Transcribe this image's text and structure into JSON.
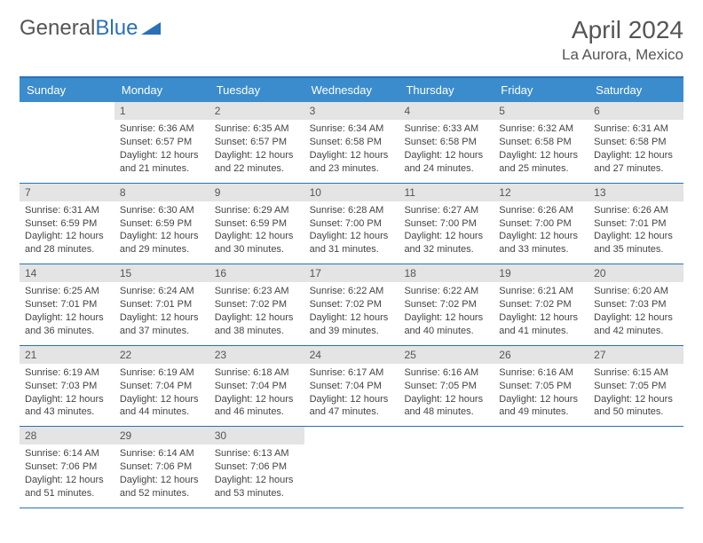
{
  "logo": {
    "part1": "General",
    "part2": "Blue"
  },
  "title": "April 2024",
  "location": "La Aurora, Mexico",
  "colors": {
    "header_bg": "#3b8ccc",
    "border": "#2a71b8",
    "daynum_bg": "#e4e4e4",
    "text": "#444444",
    "muted": "#555555"
  },
  "dayNames": [
    "Sunday",
    "Monday",
    "Tuesday",
    "Wednesday",
    "Thursday",
    "Friday",
    "Saturday"
  ],
  "weeks": [
    [
      {
        "day": "",
        "sunrise": "",
        "sunset": "",
        "daylight1": "",
        "daylight2": ""
      },
      {
        "day": "1",
        "sunrise": "Sunrise: 6:36 AM",
        "sunset": "Sunset: 6:57 PM",
        "daylight1": "Daylight: 12 hours",
        "daylight2": "and 21 minutes."
      },
      {
        "day": "2",
        "sunrise": "Sunrise: 6:35 AM",
        "sunset": "Sunset: 6:57 PM",
        "daylight1": "Daylight: 12 hours",
        "daylight2": "and 22 minutes."
      },
      {
        "day": "3",
        "sunrise": "Sunrise: 6:34 AM",
        "sunset": "Sunset: 6:58 PM",
        "daylight1": "Daylight: 12 hours",
        "daylight2": "and 23 minutes."
      },
      {
        "day": "4",
        "sunrise": "Sunrise: 6:33 AM",
        "sunset": "Sunset: 6:58 PM",
        "daylight1": "Daylight: 12 hours",
        "daylight2": "and 24 minutes."
      },
      {
        "day": "5",
        "sunrise": "Sunrise: 6:32 AM",
        "sunset": "Sunset: 6:58 PM",
        "daylight1": "Daylight: 12 hours",
        "daylight2": "and 25 minutes."
      },
      {
        "day": "6",
        "sunrise": "Sunrise: 6:31 AM",
        "sunset": "Sunset: 6:58 PM",
        "daylight1": "Daylight: 12 hours",
        "daylight2": "and 27 minutes."
      }
    ],
    [
      {
        "day": "7",
        "sunrise": "Sunrise: 6:31 AM",
        "sunset": "Sunset: 6:59 PM",
        "daylight1": "Daylight: 12 hours",
        "daylight2": "and 28 minutes."
      },
      {
        "day": "8",
        "sunrise": "Sunrise: 6:30 AM",
        "sunset": "Sunset: 6:59 PM",
        "daylight1": "Daylight: 12 hours",
        "daylight2": "and 29 minutes."
      },
      {
        "day": "9",
        "sunrise": "Sunrise: 6:29 AM",
        "sunset": "Sunset: 6:59 PM",
        "daylight1": "Daylight: 12 hours",
        "daylight2": "and 30 minutes."
      },
      {
        "day": "10",
        "sunrise": "Sunrise: 6:28 AM",
        "sunset": "Sunset: 7:00 PM",
        "daylight1": "Daylight: 12 hours",
        "daylight2": "and 31 minutes."
      },
      {
        "day": "11",
        "sunrise": "Sunrise: 6:27 AM",
        "sunset": "Sunset: 7:00 PM",
        "daylight1": "Daylight: 12 hours",
        "daylight2": "and 32 minutes."
      },
      {
        "day": "12",
        "sunrise": "Sunrise: 6:26 AM",
        "sunset": "Sunset: 7:00 PM",
        "daylight1": "Daylight: 12 hours",
        "daylight2": "and 33 minutes."
      },
      {
        "day": "13",
        "sunrise": "Sunrise: 6:26 AM",
        "sunset": "Sunset: 7:01 PM",
        "daylight1": "Daylight: 12 hours",
        "daylight2": "and 35 minutes."
      }
    ],
    [
      {
        "day": "14",
        "sunrise": "Sunrise: 6:25 AM",
        "sunset": "Sunset: 7:01 PM",
        "daylight1": "Daylight: 12 hours",
        "daylight2": "and 36 minutes."
      },
      {
        "day": "15",
        "sunrise": "Sunrise: 6:24 AM",
        "sunset": "Sunset: 7:01 PM",
        "daylight1": "Daylight: 12 hours",
        "daylight2": "and 37 minutes."
      },
      {
        "day": "16",
        "sunrise": "Sunrise: 6:23 AM",
        "sunset": "Sunset: 7:02 PM",
        "daylight1": "Daylight: 12 hours",
        "daylight2": "and 38 minutes."
      },
      {
        "day": "17",
        "sunrise": "Sunrise: 6:22 AM",
        "sunset": "Sunset: 7:02 PM",
        "daylight1": "Daylight: 12 hours",
        "daylight2": "and 39 minutes."
      },
      {
        "day": "18",
        "sunrise": "Sunrise: 6:22 AM",
        "sunset": "Sunset: 7:02 PM",
        "daylight1": "Daylight: 12 hours",
        "daylight2": "and 40 minutes."
      },
      {
        "day": "19",
        "sunrise": "Sunrise: 6:21 AM",
        "sunset": "Sunset: 7:02 PM",
        "daylight1": "Daylight: 12 hours",
        "daylight2": "and 41 minutes."
      },
      {
        "day": "20",
        "sunrise": "Sunrise: 6:20 AM",
        "sunset": "Sunset: 7:03 PM",
        "daylight1": "Daylight: 12 hours",
        "daylight2": "and 42 minutes."
      }
    ],
    [
      {
        "day": "21",
        "sunrise": "Sunrise: 6:19 AM",
        "sunset": "Sunset: 7:03 PM",
        "daylight1": "Daylight: 12 hours",
        "daylight2": "and 43 minutes."
      },
      {
        "day": "22",
        "sunrise": "Sunrise: 6:19 AM",
        "sunset": "Sunset: 7:04 PM",
        "daylight1": "Daylight: 12 hours",
        "daylight2": "and 44 minutes."
      },
      {
        "day": "23",
        "sunrise": "Sunrise: 6:18 AM",
        "sunset": "Sunset: 7:04 PM",
        "daylight1": "Daylight: 12 hours",
        "daylight2": "and 46 minutes."
      },
      {
        "day": "24",
        "sunrise": "Sunrise: 6:17 AM",
        "sunset": "Sunset: 7:04 PM",
        "daylight1": "Daylight: 12 hours",
        "daylight2": "and 47 minutes."
      },
      {
        "day": "25",
        "sunrise": "Sunrise: 6:16 AM",
        "sunset": "Sunset: 7:05 PM",
        "daylight1": "Daylight: 12 hours",
        "daylight2": "and 48 minutes."
      },
      {
        "day": "26",
        "sunrise": "Sunrise: 6:16 AM",
        "sunset": "Sunset: 7:05 PM",
        "daylight1": "Daylight: 12 hours",
        "daylight2": "and 49 minutes."
      },
      {
        "day": "27",
        "sunrise": "Sunrise: 6:15 AM",
        "sunset": "Sunset: 7:05 PM",
        "daylight1": "Daylight: 12 hours",
        "daylight2": "and 50 minutes."
      }
    ],
    [
      {
        "day": "28",
        "sunrise": "Sunrise: 6:14 AM",
        "sunset": "Sunset: 7:06 PM",
        "daylight1": "Daylight: 12 hours",
        "daylight2": "and 51 minutes."
      },
      {
        "day": "29",
        "sunrise": "Sunrise: 6:14 AM",
        "sunset": "Sunset: 7:06 PM",
        "daylight1": "Daylight: 12 hours",
        "daylight2": "and 52 minutes."
      },
      {
        "day": "30",
        "sunrise": "Sunrise: 6:13 AM",
        "sunset": "Sunset: 7:06 PM",
        "daylight1": "Daylight: 12 hours",
        "daylight2": "and 53 minutes."
      },
      {
        "day": "",
        "sunrise": "",
        "sunset": "",
        "daylight1": "",
        "daylight2": ""
      },
      {
        "day": "",
        "sunrise": "",
        "sunset": "",
        "daylight1": "",
        "daylight2": ""
      },
      {
        "day": "",
        "sunrise": "",
        "sunset": "",
        "daylight1": "",
        "daylight2": ""
      },
      {
        "day": "",
        "sunrise": "",
        "sunset": "",
        "daylight1": "",
        "daylight2": ""
      }
    ]
  ]
}
